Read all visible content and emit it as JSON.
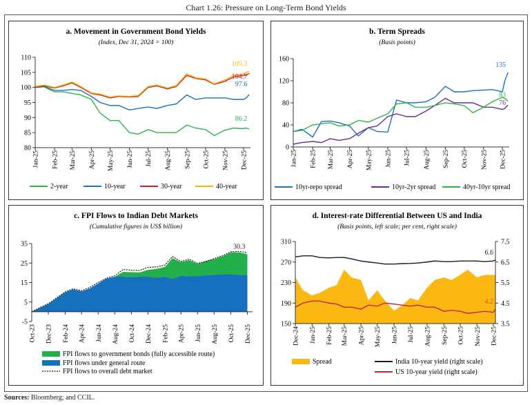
{
  "title": "Chart 1.26: Pressure on Long-Term Bond Yields",
  "sources_label": "Sources:",
  "sources_text": "Bloomberg; and CCIL.",
  "chart_data": [
    {
      "id": "a",
      "type": "line",
      "title": "a. Movement in Government Bond Yields",
      "subtitle": "(Index, Dec 31, 2024 = 100)",
      "ylim": [
        80,
        110
      ],
      "yticks": [
        80,
        85,
        90,
        95,
        100,
        105,
        110
      ],
      "xlim": [
        "2025-01-01",
        "2025-12-12"
      ],
      "xticks": [
        [
          "2025-01-01",
          "Jan-25"
        ],
        [
          "2025-02-01",
          "Feb-25"
        ],
        [
          "2025-03-01",
          "Mar-25"
        ],
        [
          "2025-04-01",
          "Apr-25"
        ],
        [
          "2025-05-01",
          "May-25"
        ],
        [
          "2025-06-01",
          "Jun-25"
        ],
        [
          "2025-07-01",
          "Jul-25"
        ],
        [
          "2025-08-01",
          "Aug-25"
        ],
        [
          "2025-09-01",
          "Sep-25"
        ],
        [
          "2025-10-01",
          "Oct-25"
        ],
        [
          "2025-11-01",
          "Nov-25"
        ],
        [
          "2025-12-01",
          "Dec-25"
        ]
      ],
      "x": [
        "2025-01-01",
        "2025-01-15",
        "2025-02-01",
        "2025-02-15",
        "2025-03-01",
        "2025-03-15",
        "2025-04-01",
        "2025-04-15",
        "2025-05-01",
        "2025-05-15",
        "2025-06-01",
        "2025-06-15",
        "2025-07-01",
        "2025-07-15",
        "2025-08-01",
        "2025-08-15",
        "2025-09-01",
        "2025-09-15",
        "2025-10-01",
        "2025-10-15",
        "2025-11-01",
        "2025-11-15",
        "2025-12-01",
        "2025-12-05",
        "2025-12-10"
      ],
      "series": [
        {
          "name": "2-year",
          "color": "#2eb34a",
          "values": [
            100,
            100.2,
            98.5,
            98.5,
            98,
            97.5,
            96,
            91.5,
            89,
            89,
            85,
            84.5,
            86,
            85,
            85,
            85,
            87.5,
            86.5,
            86,
            84,
            85.8,
            86.5,
            86.3,
            86.5,
            86.2
          ],
          "end_label": "86.2"
        },
        {
          "name": "10-year",
          "color": "#1f6fb8",
          "values": [
            100,
            100.3,
            99,
            99,
            99.3,
            99,
            97,
            95,
            94,
            94,
            92.5,
            93,
            93.5,
            93,
            94,
            94.5,
            97.5,
            96,
            96.5,
            96.5,
            96.5,
            96,
            96,
            96.5,
            97.6
          ],
          "end_label": "97.6"
        },
        {
          "name": "30-year",
          "color": "#c8202e",
          "values": [
            100,
            100.5,
            99.8,
            100.5,
            101.5,
            100,
            98,
            97.5,
            96.5,
            97,
            96.8,
            97,
            100,
            100.5,
            99.5,
            100.3,
            104,
            103,
            102.5,
            101,
            102,
            103.5,
            104,
            104,
            104.7
          ],
          "end_label": "104.7"
        },
        {
          "name": "40-year",
          "color": "#f7b500",
          "values": [
            100.3,
            100.8,
            100,
            100.8,
            101.8,
            100.3,
            98.2,
            97.8,
            96.8,
            97.2,
            97,
            97.3,
            100.3,
            100.8,
            99.8,
            100.6,
            104.5,
            103.2,
            102.8,
            101.2,
            102.5,
            104,
            104.5,
            105,
            105.3
          ],
          "end_label": "105.3"
        }
      ]
    },
    {
      "id": "b",
      "type": "line",
      "title": "b. Term Spreads",
      "subtitle": "(Basis points)",
      "ylim": [
        0,
        160
      ],
      "yticks": [
        0,
        40,
        80,
        120,
        160
      ],
      "xlim": [
        "2025-01-01",
        "2025-12-12"
      ],
      "xticks": [
        [
          "2025-01-01",
          "Jan-25"
        ],
        [
          "2025-02-01",
          "Feb-25"
        ],
        [
          "2025-03-01",
          "Mar-25"
        ],
        [
          "2025-04-01",
          "Apr-25"
        ],
        [
          "2025-05-01",
          "May-25"
        ],
        [
          "2025-06-01",
          "Jun-25"
        ],
        [
          "2025-07-01",
          "Jul-25"
        ],
        [
          "2025-08-01",
          "Aug-25"
        ],
        [
          "2025-09-01",
          "Sep-25"
        ],
        [
          "2025-10-01",
          "Oct-25"
        ],
        [
          "2025-11-01",
          "Nov-25"
        ],
        [
          "2025-12-01",
          "Dec-25"
        ]
      ],
      "x": [
        "2025-01-01",
        "2025-01-15",
        "2025-02-01",
        "2025-02-15",
        "2025-03-01",
        "2025-03-15",
        "2025-04-01",
        "2025-04-15",
        "2025-05-01",
        "2025-05-15",
        "2025-06-01",
        "2025-06-15",
        "2025-07-01",
        "2025-07-15",
        "2025-08-01",
        "2025-08-15",
        "2025-09-01",
        "2025-09-15",
        "2025-10-01",
        "2025-10-15",
        "2025-11-01",
        "2025-11-15",
        "2025-12-01",
        "2025-12-05",
        "2025-12-10"
      ],
      "series": [
        {
          "name": "10yr-repo spread",
          "color": "#1f6fb8",
          "values": [
            28,
            32,
            18,
            46,
            47,
            44,
            38,
            20,
            35,
            28,
            27,
            85,
            80,
            80,
            82,
            90,
            110,
            100,
            100,
            102,
            103,
            104,
            100,
            120,
            135
          ],
          "end_label": "135"
        },
        {
          "name": "10yr-2yr spread",
          "color": "#6a2c91",
          "values": [
            5,
            8,
            10,
            8,
            15,
            12,
            15,
            25,
            35,
            38,
            55,
            60,
            55,
            55,
            65,
            75,
            88,
            80,
            80,
            80,
            72,
            72,
            68,
            70,
            76
          ],
          "end_label": "76"
        },
        {
          "name": "40yr-10yr spread",
          "color": "#2eb34a",
          "values": [
            28,
            30,
            40,
            42,
            44,
            38,
            40,
            48,
            45,
            52,
            60,
            78,
            80,
            72,
            72,
            75,
            80,
            78,
            75,
            62,
            72,
            82,
            90,
            88,
            83
          ],
          "end_label": "83"
        }
      ]
    },
    {
      "id": "c",
      "type": "area",
      "title": "c. FPI Flows to Indian Debt Markets",
      "subtitle": "(Cumulative figures in US$ billion)",
      "ylim": [
        -5,
        35
      ],
      "yticks": [
        -5,
        5,
        15,
        25,
        35
      ],
      "xlim": [
        "2023-10-01",
        "2025-12-20"
      ],
      "xticks": [
        [
          "2023-10-01",
          "Oct-23"
        ],
        [
          "2023-12-01",
          "Dec-23"
        ],
        [
          "2024-02-01",
          "Feb-24"
        ],
        [
          "2024-04-01",
          "Apr-24"
        ],
        [
          "2024-06-01",
          "Jun-24"
        ],
        [
          "2024-08-01",
          "Aug-24"
        ],
        [
          "2024-10-01",
          "Oct-24"
        ],
        [
          "2024-12-01",
          "Dec-24"
        ],
        [
          "2025-02-01",
          "Feb-25"
        ],
        [
          "2025-04-01",
          "Apr-25"
        ],
        [
          "2025-06-01",
          "Jun-25"
        ],
        [
          "2025-08-01",
          "Aug-25"
        ],
        [
          "2025-10-01",
          "Oct-25"
        ],
        [
          "2025-12-01",
          "Dec-25"
        ]
      ],
      "x": [
        "2023-10-01",
        "2023-11-01",
        "2023-12-01",
        "2024-01-01",
        "2024-02-01",
        "2024-03-01",
        "2024-04-01",
        "2024-05-01",
        "2024-06-01",
        "2024-07-01",
        "2024-08-01",
        "2024-09-01",
        "2024-10-01",
        "2024-11-01",
        "2024-12-01",
        "2025-01-01",
        "2025-02-01",
        "2025-03-01",
        "2025-04-01",
        "2025-05-01",
        "2025-06-01",
        "2025-07-01",
        "2025-08-01",
        "2025-09-01",
        "2025-10-01",
        "2025-11-01",
        "2025-12-01"
      ],
      "series": [
        {
          "name": "FPI flows to government bonds (fully accessible route)",
          "color": "#23b04b",
          "kind": "stacked-area",
          "values": [
            0,
            0,
            0,
            0,
            0,
            0,
            0,
            0,
            0,
            0,
            0,
            2.5,
            2.5,
            2.2,
            3.5,
            4.5,
            5,
            10.5,
            7,
            8.3,
            6.3,
            7.3,
            8,
            9.3,
            11.2,
            11.5,
            10.5
          ]
        },
        {
          "name": "FPI flows under general route",
          "color": "#1570be",
          "kind": "area",
          "values": [
            0,
            2,
            4,
            7,
            10,
            11.5,
            10.5,
            12,
            14.5,
            17,
            18,
            18,
            17.8,
            18,
            18,
            17.5,
            18,
            17,
            18.5,
            18.2,
            18.2,
            18.7,
            19,
            19.2,
            19.3,
            19,
            19
          ]
        },
        {
          "name": "FPI flows to overall debt market",
          "color": "#111111",
          "kind": "dotted-line",
          "values": [
            0,
            2.2,
            4.2,
            7.2,
            10.2,
            11.8,
            10.8,
            12.5,
            15,
            17.2,
            18.5,
            21.7,
            21.3,
            21.2,
            22.8,
            23,
            24,
            28.3,
            25.8,
            27,
            24.8,
            25.8,
            27.3,
            28.8,
            30.8,
            31,
            30.3
          ],
          "end_label": "30.3"
        }
      ]
    },
    {
      "id": "d",
      "type": "area+line",
      "title": "d. Interest-rate Differential Between US and India",
      "subtitle": "(Basis points, left scale; per cent, right scale)",
      "ylim": [
        150,
        310
      ],
      "yticks": [
        150,
        190,
        230,
        270,
        310
      ],
      "y2lim": [
        3.5,
        7.5
      ],
      "y2ticks": [
        "3.5",
        "4.5",
        "5.5",
        "6.5",
        "7.5"
      ],
      "xlim": [
        "2024-12-01",
        "2025-12-05"
      ],
      "xticks": [
        [
          "2024-12-01",
          "Dec-24"
        ],
        [
          "2025-01-01",
          "Jan-25"
        ],
        [
          "2025-02-01",
          "Feb-25"
        ],
        [
          "2025-03-01",
          "Mar-25"
        ],
        [
          "2025-04-01",
          "Apr-25"
        ],
        [
          "2025-05-01",
          "May-25"
        ],
        [
          "2025-06-01",
          "Jun-25"
        ],
        [
          "2025-07-01",
          "Jul-25"
        ],
        [
          "2025-08-01",
          "Aug-25"
        ],
        [
          "2025-09-01",
          "Sep-25"
        ],
        [
          "2025-10-01",
          "Oct-25"
        ],
        [
          "2025-11-01",
          "Nov-25"
        ],
        [
          "2025-12-01",
          "Dec-25"
        ]
      ],
      "x": [
        "2024-12-01",
        "2024-12-15",
        "2025-01-01",
        "2025-01-15",
        "2025-02-01",
        "2025-02-15",
        "2025-03-01",
        "2025-03-15",
        "2025-04-01",
        "2025-04-15",
        "2025-05-01",
        "2025-05-15",
        "2025-06-01",
        "2025-06-15",
        "2025-07-01",
        "2025-07-15",
        "2025-08-01",
        "2025-08-15",
        "2025-09-01",
        "2025-09-15",
        "2025-10-01",
        "2025-10-15",
        "2025-11-01",
        "2025-11-15",
        "2025-12-01",
        "2025-12-05"
      ],
      "series": [
        {
          "name": "Spread",
          "color": "#fbb812",
          "axis": "left",
          "kind": "area",
          "values": [
            240,
            215,
            205,
            210,
            220,
            225,
            255,
            240,
            235,
            195,
            215,
            195,
            175,
            185,
            200,
            195,
            220,
            235,
            240,
            235,
            245,
            255,
            240,
            245,
            245,
            245
          ]
        },
        {
          "name": "India 10-year yield (right scale)",
          "color": "#1a1a1a",
          "axis": "right",
          "kind": "line",
          "values": [
            6.75,
            6.8,
            6.8,
            6.72,
            6.7,
            6.72,
            6.72,
            6.65,
            6.55,
            6.5,
            6.45,
            6.4,
            6.4,
            6.42,
            6.43,
            6.45,
            6.5,
            6.55,
            6.52,
            6.52,
            6.55,
            6.55,
            6.55,
            6.52,
            6.55,
            6.6
          ],
          "end_label": "6.6"
        },
        {
          "name": "US 10-year yield (right scale)",
          "color": "#c8202e",
          "axis": "right",
          "kind": "line",
          "values": [
            4.3,
            4.5,
            4.6,
            4.6,
            4.5,
            4.45,
            4.3,
            4.3,
            4.2,
            4.4,
            4.35,
            4.5,
            4.45,
            4.4,
            4.35,
            4.4,
            4.3,
            4.3,
            4.1,
            4.15,
            4.1,
            4.0,
            4.05,
            4.1,
            4.05,
            4.2
          ],
          "end_label": "4.2"
        }
      ]
    }
  ]
}
